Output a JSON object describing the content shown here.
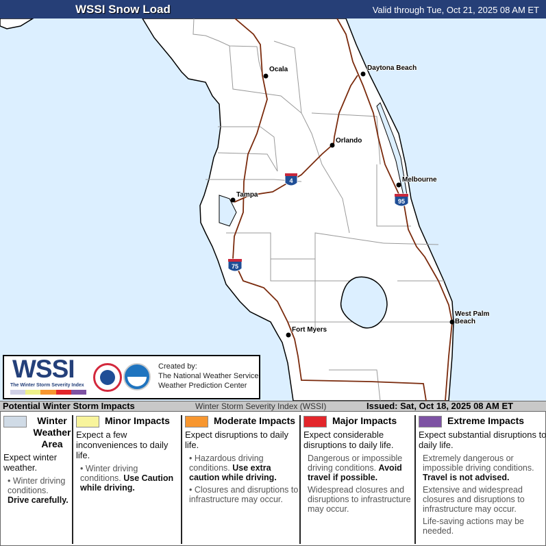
{
  "header": {
    "title": "WSSI Snow Load",
    "valid": "Valid through Tue, Oct 21, 2025 08 AM ET"
  },
  "map": {
    "water_color": "#dcefff",
    "land_color": "#ffffff",
    "road_color": "#7a2a0c",
    "cities": [
      "Ocala",
      "Daytona Beach",
      "Orlando",
      "Melbourne",
      "Tampa",
      "Fort Myers",
      "West Palm Beach"
    ],
    "shields": [
      "4",
      "95",
      "75"
    ]
  },
  "logo": {
    "wordmark": "WSSI",
    "tagline": "The Winter Storm Severity Index",
    "created_by": "Created by:",
    "org1": "The National Weather Service",
    "org2": "Weather Prediction Center"
  },
  "strip": {
    "left": "Potential Winter Storm Impacts",
    "middle": "Winter Storm Severity Index (WSSI)",
    "right": "Issued: Sat, Oct 18, 2025 08 AM ET"
  },
  "legend": [
    {
      "title": "Winter Weather Area",
      "color": "#d0dbe6",
      "lead": "Expect winter weather.",
      "bullets": [
        {
          "text": "Winter driving conditions.",
          "bold": "Drive carefully."
        }
      ]
    },
    {
      "title": "Minor Impacts",
      "color": "#f8f49c",
      "lead": "Expect a few inconveniences to daily life.",
      "bullets": [
        {
          "text": "Winter driving conditions.",
          "bold": "Use Caution while driving."
        }
      ]
    },
    {
      "title": "Moderate Impacts",
      "color": "#f7962f",
      "lead": "Expect disruptions to daily life.",
      "bullets": [
        {
          "text": "Hazardous driving conditions.",
          "bold": "Use extra caution while driving."
        },
        {
          "text": "Closures and disruptions to infrastructure may occur.",
          "bold": ""
        }
      ]
    },
    {
      "title": "Major Impacts",
      "color": "#e3262b",
      "lead": "Expect considerable disruptions to daily life.",
      "bullets": [
        {
          "text": "Dangerous or impossible driving conditions.",
          "bold": "Avoid travel if possible."
        },
        {
          "text": "Widespread closures and disruptions to infrastructure may occur.",
          "bold": ""
        }
      ]
    },
    {
      "title": "Extreme Impacts",
      "color": "#7d52a3",
      "lead": "Expect substantial disruptions to daily life.",
      "bullets": [
        {
          "text": "Extremely dangerous or impossible driving conditions.",
          "bold": "Travel is not advised."
        },
        {
          "text": "Extensive and widespread closures and disruptions to infrastructure may occur.",
          "bold": ""
        },
        {
          "text": "Life-saving actions may be needed.",
          "bold": ""
        }
      ]
    }
  ]
}
